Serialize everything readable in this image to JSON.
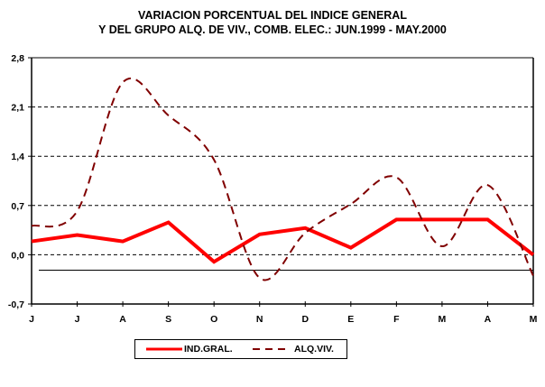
{
  "title_lines": [
    "VARIACION PORCENTUAL DEL INDICE GENERAL",
    "Y DEL GRUPO ALQ. DE VIV., COMB.  ELEC.: JUN.1999 - MAY.2000"
  ],
  "chart_data": {
    "type": "line",
    "title": "VARIACION PORCENTUAL DEL INDICE GENERAL Y DEL GRUPO ALQ. DE VIV., COMB.  ELEC.: JUN.1999 - MAY.2000",
    "xlabel": "",
    "ylabel": "",
    "categories": [
      "J",
      "J",
      "A",
      "S",
      "O",
      "N",
      "D",
      "E",
      "F",
      "M",
      "A",
      "M"
    ],
    "ylim": [
      -0.7,
      2.8
    ],
    "yticks": [
      -0.7,
      0.0,
      0.7,
      1.4,
      2.1,
      2.8
    ],
    "ytick_labels": [
      "-0,7",
      "0,0",
      "0,7",
      "1,4",
      "2,1",
      "2,8"
    ],
    "grid": "horizontal dashed",
    "reference_line": -0.22,
    "legend_position": "bottom",
    "series": [
      {
        "name": "IND.GRAL.",
        "style": "solid-thick",
        "color": "#ff0000",
        "values": [
          0.19,
          0.28,
          0.19,
          0.46,
          -0.1,
          0.29,
          0.38,
          0.1,
          0.5,
          0.5,
          0.5,
          0.0
        ]
      },
      {
        "name": "ALQ.VIV.",
        "style": "dashed-smooth",
        "color": "#800000",
        "values": [
          0.41,
          0.62,
          2.45,
          1.98,
          1.35,
          -0.33,
          0.31,
          0.72,
          1.1,
          0.12,
          0.99,
          -0.3
        ]
      }
    ]
  }
}
